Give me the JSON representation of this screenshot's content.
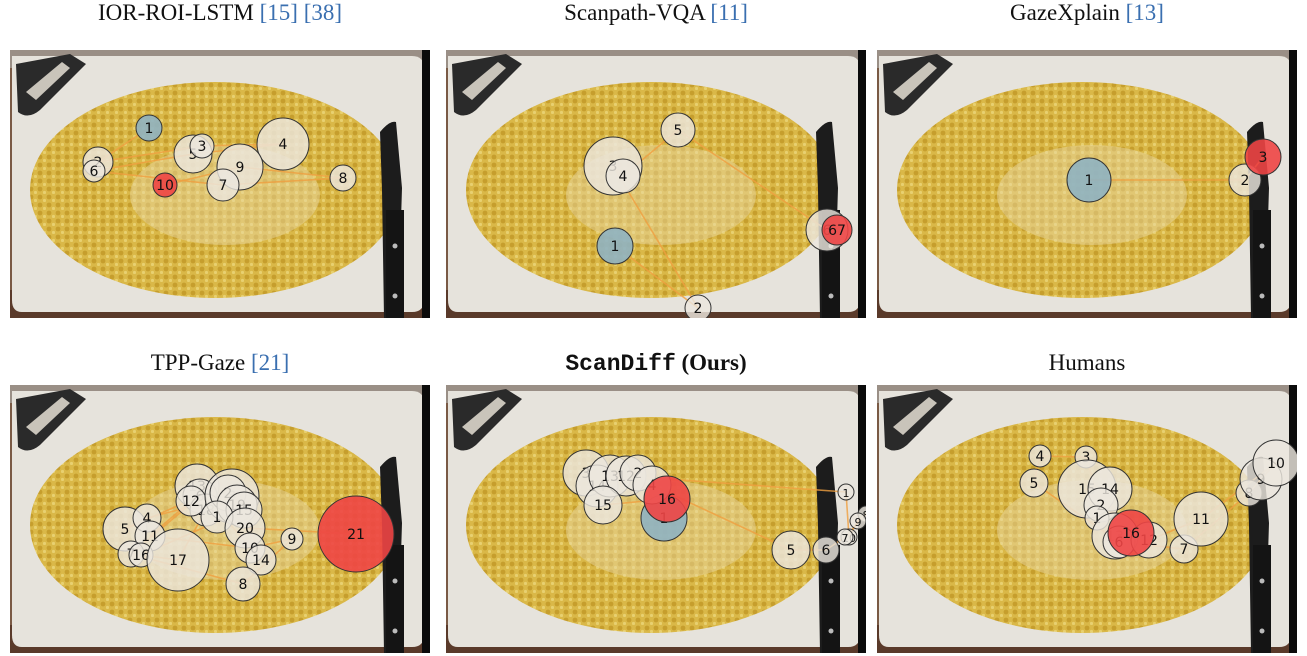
{
  "panels": [
    {
      "title": "IOR-ROI-LSTM",
      "refs": [
        "15",
        "38"
      ],
      "style": "plain",
      "fixations": [
        {
          "label": "1",
          "x": 139,
          "y": 78,
          "r": 13,
          "color": "blue"
        },
        {
          "label": "2",
          "x": 88,
          "y": 112,
          "r": 15,
          "color": "white"
        },
        {
          "label": "6",
          "x": 84,
          "y": 121,
          "r": 11,
          "color": "white"
        },
        {
          "label": "5",
          "x": 183,
          "y": 104,
          "r": 19,
          "color": "white"
        },
        {
          "label": "3",
          "x": 192,
          "y": 96,
          "r": 12,
          "color": "white"
        },
        {
          "label": "4",
          "x": 273,
          "y": 94,
          "r": 26,
          "color": "white"
        },
        {
          "label": "9",
          "x": 230,
          "y": 117,
          "r": 23,
          "color": "white"
        },
        {
          "label": "7",
          "x": 213,
          "y": 135,
          "r": 16,
          "color": "white"
        },
        {
          "label": "8",
          "x": 333,
          "y": 128,
          "r": 13,
          "color": "white"
        },
        {
          "label": "10",
          "x": 155,
          "y": 135,
          "r": 12,
          "color": "red"
        }
      ]
    },
    {
      "title": "Scanpath-VQA",
      "refs": [
        "11"
      ],
      "style": "plain",
      "fixations": [
        {
          "label": "1",
          "x": 169,
          "y": 196,
          "r": 18,
          "color": "blue"
        },
        {
          "label": "2",
          "x": 252,
          "y": 258,
          "r": 13,
          "color": "white"
        },
        {
          "label": "3",
          "x": 167,
          "y": 116,
          "r": 29,
          "color": "white"
        },
        {
          "label": "4",
          "x": 177,
          "y": 126,
          "r": 17,
          "color": "white"
        },
        {
          "label": "5",
          "x": 232,
          "y": 80,
          "r": 17,
          "color": "white"
        },
        {
          "label": "6",
          "x": 381,
          "y": 180,
          "r": 21,
          "color": "white"
        },
        {
          "label": "7",
          "x": 391,
          "y": 180,
          "r": 15,
          "color": "red",
          "text": "67"
        }
      ]
    },
    {
      "title": "GazeXplain",
      "refs": [
        "13"
      ],
      "style": "plain",
      "fixations": [
        {
          "label": "1",
          "x": 212,
          "y": 130,
          "r": 22,
          "color": "blue"
        },
        {
          "label": "2",
          "x": 368,
          "y": 130,
          "r": 16,
          "color": "white"
        },
        {
          "label": "3",
          "x": 386,
          "y": 107,
          "r": 18,
          "color": "red"
        }
      ]
    },
    {
      "title": "TPP-Gaze",
      "refs": [
        "21"
      ],
      "style": "plain",
      "fixations": [
        {
          "label": "5",
          "x": 115,
          "y": 144,
          "r": 22,
          "color": "white"
        },
        {
          "label": "4",
          "x": 137,
          "y": 133,
          "r": 14,
          "color": "white"
        },
        {
          "label": "11",
          "x": 140,
          "y": 151,
          "r": 15,
          "color": "white"
        },
        {
          "label": "7",
          "x": 121,
          "y": 169,
          "r": 13,
          "color": "white"
        },
        {
          "label": "16",
          "x": 131,
          "y": 170,
          "r": 12,
          "color": "white"
        },
        {
          "label": "13",
          "x": 187,
          "y": 101,
          "r": 22,
          "color": "white"
        },
        {
          "label": "6",
          "x": 190,
          "y": 111,
          "r": 17,
          "color": "white"
        },
        {
          "label": "18",
          "x": 196,
          "y": 125,
          "r": 16,
          "color": "white"
        },
        {
          "label": "12",
          "x": 181,
          "y": 116,
          "r": 15,
          "color": "white"
        },
        {
          "label": "3",
          "x": 222,
          "y": 111,
          "r": 27,
          "color": "white"
        },
        {
          "label": "2",
          "x": 218,
          "y": 108,
          "r": 18,
          "color": "white"
        },
        {
          "label": "19",
          "x": 227,
          "y": 120,
          "r": 20,
          "color": "white"
        },
        {
          "label": "15",
          "x": 234,
          "y": 125,
          "r": 18,
          "color": "white"
        },
        {
          "label": "1",
          "x": 207,
          "y": 132,
          "r": 16,
          "color": "white"
        },
        {
          "label": "20",
          "x": 235,
          "y": 143,
          "r": 20,
          "color": "white"
        },
        {
          "label": "10",
          "x": 240,
          "y": 163,
          "r": 15,
          "color": "white"
        },
        {
          "label": "14",
          "x": 251,
          "y": 175,
          "r": 15,
          "color": "white"
        },
        {
          "label": "17",
          "x": 168,
          "y": 175,
          "r": 31,
          "color": "white"
        },
        {
          "label": "8",
          "x": 233,
          "y": 199,
          "r": 17,
          "color": "white"
        },
        {
          "label": "9",
          "x": 282,
          "y": 154,
          "r": 11,
          "color": "white"
        },
        {
          "label": "21",
          "x": 346,
          "y": 149,
          "r": 38,
          "color": "red"
        }
      ]
    },
    {
      "title": "ScanDiff",
      "suffix": "(Ours)",
      "refs": [],
      "style": "ours",
      "fixations": [
        {
          "label": "1",
          "x": 218,
          "y": 133,
          "r": 23,
          "color": "blue"
        },
        {
          "label": "3",
          "x": 140,
          "y": 88,
          "r": 23,
          "color": "white"
        },
        {
          "label": "14",
          "x": 151,
          "y": 101,
          "r": 21,
          "color": "white"
        },
        {
          "label": "13",
          "x": 164,
          "y": 91,
          "r": 21,
          "color": "white"
        },
        {
          "label": "12",
          "x": 180,
          "y": 91,
          "r": 20,
          "color": "white"
        },
        {
          "label": "2",
          "x": 192,
          "y": 88,
          "r": 18,
          "color": "white"
        },
        {
          "label": "15",
          "x": 157,
          "y": 120,
          "r": 19,
          "color": "white"
        },
        {
          "label": "4",
          "x": 206,
          "y": 100,
          "r": 19,
          "color": "white"
        },
        {
          "label": "16",
          "x": 221,
          "y": 114,
          "r": 23,
          "color": "red"
        },
        {
          "label": "11",
          "x": 400,
          "y": 107,
          "r": 8,
          "color": "white",
          "text": "1"
        },
        {
          "label": "8",
          "x": 420,
          "y": 129,
          "r": 8,
          "color": "white"
        },
        {
          "label": "9",
          "x": 412,
          "y": 136,
          "r": 8,
          "color": "white"
        },
        {
          "label": "10",
          "x": 403,
          "y": 152,
          "r": 8,
          "color": "white"
        },
        {
          "label": "7",
          "x": 399,
          "y": 152,
          "r": 8,
          "color": "white"
        },
        {
          "label": "6",
          "x": 380,
          "y": 165,
          "r": 13,
          "color": "white"
        },
        {
          "label": "5",
          "x": 345,
          "y": 165,
          "r": 19,
          "color": "white"
        }
      ]
    },
    {
      "title": "Humans",
      "refs": [],
      "style": "plain",
      "fixations": [
        {
          "label": "4",
          "x": 163,
          "y": 71,
          "r": 11,
          "color": "white"
        },
        {
          "label": "3",
          "x": 209,
          "y": 72,
          "r": 11,
          "color": "white"
        },
        {
          "label": "5",
          "x": 157,
          "y": 98,
          "r": 14,
          "color": "white"
        },
        {
          "label": "15",
          "x": 210,
          "y": 104,
          "r": 29,
          "color": "white"
        },
        {
          "label": "14",
          "x": 233,
          "y": 104,
          "r": 22,
          "color": "white"
        },
        {
          "label": "2",
          "x": 224,
          "y": 120,
          "r": 17,
          "color": "white"
        },
        {
          "label": "1",
          "x": 220,
          "y": 133,
          "r": 12,
          "color": "white"
        },
        {
          "label": "13",
          "x": 238,
          "y": 151,
          "r": 23,
          "color": "white"
        },
        {
          "label": "6",
          "x": 242,
          "y": 157,
          "r": 16,
          "color": "white"
        },
        {
          "label": "12",
          "x": 272,
          "y": 155,
          "r": 18,
          "color": "white"
        },
        {
          "label": "16",
          "x": 254,
          "y": 148,
          "r": 23,
          "color": "red"
        },
        {
          "label": "7",
          "x": 307,
          "y": 164,
          "r": 14,
          "color": "white"
        },
        {
          "label": "11",
          "x": 324,
          "y": 134,
          "r": 27,
          "color": "white"
        },
        {
          "label": "8",
          "x": 372,
          "y": 108,
          "r": 13,
          "color": "white"
        },
        {
          "label": "9",
          "x": 384,
          "y": 94,
          "r": 21,
          "color": "white"
        },
        {
          "label": "10",
          "x": 399,
          "y": 78,
          "r": 23,
          "color": "white"
        }
      ]
    }
  ],
  "colors": {
    "first_fixation": "#8fb3c2",
    "last_fixation": "#ee4545",
    "fixation": "#ece7de",
    "path": "#f0a040",
    "ref_link": "#3a6fb0"
  }
}
